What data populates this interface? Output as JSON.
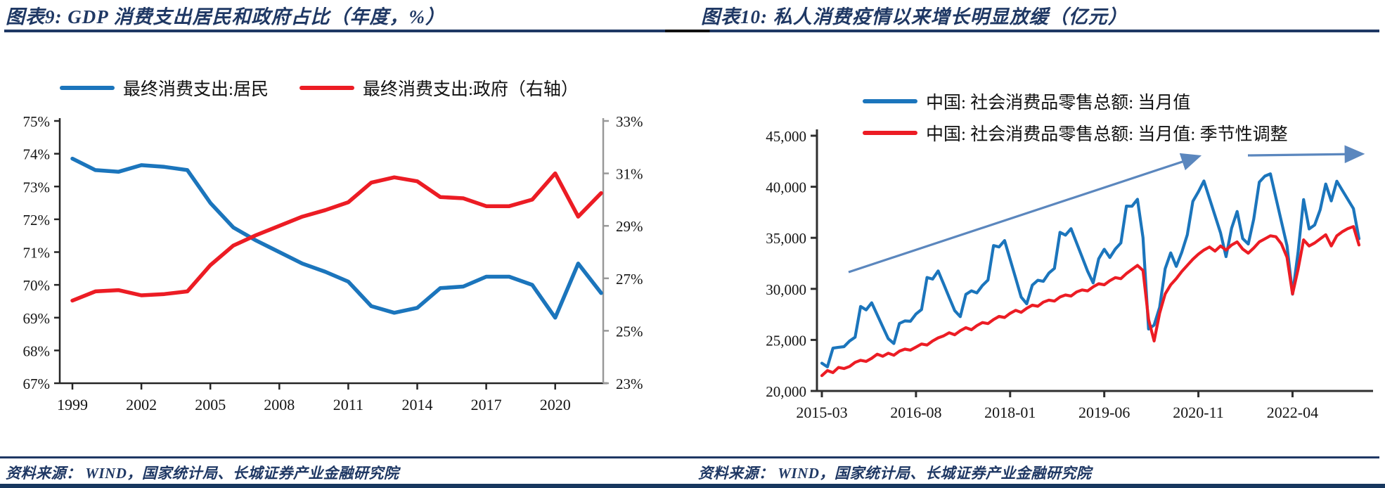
{
  "page": {
    "accent_color": "#1f3864",
    "source_text": "资料来源：  WIND，国家统计局、长城证券产业金融研究院"
  },
  "left_panel": {
    "title": "图表9:  GDP 消费支出居民和政府占比（年度，%）",
    "legend": [
      {
        "label": "最终消费支出:居民",
        "color": "#1b75bc"
      },
      {
        "label": "最终消费支出:政府（右轴）",
        "color": "#ec1c24"
      }
    ],
    "chart_data": {
      "type": "line",
      "title": "GDP消费支出居民和政府占比（年度，%）",
      "categories": [
        1999,
        2000,
        2001,
        2002,
        2003,
        2004,
        2005,
        2006,
        2007,
        2008,
        2009,
        2010,
        2011,
        2012,
        2013,
        2014,
        2015,
        2016,
        2017,
        2018,
        2019,
        2020,
        2021,
        2022
      ],
      "series": [
        {
          "name": "最终消费支出:居民",
          "axis": "left",
          "color": "#1b75bc",
          "values": [
            73.85,
            73.5,
            73.45,
            73.65,
            73.6,
            73.5,
            72.5,
            71.75,
            71.35,
            71.0,
            70.65,
            70.4,
            70.1,
            69.35,
            69.15,
            69.3,
            69.9,
            69.95,
            70.25,
            70.25,
            70.0,
            69.0,
            70.65,
            69.75
          ]
        },
        {
          "name": "最终消费支出:政府（右轴）",
          "axis": "right",
          "color": "#ec1c24",
          "values": [
            26.15,
            26.5,
            26.55,
            26.35,
            26.4,
            26.5,
            27.5,
            28.25,
            28.65,
            29.0,
            29.35,
            29.6,
            29.9,
            30.65,
            30.85,
            30.7,
            30.1,
            30.05,
            29.75,
            29.75,
            30.0,
            31.0,
            29.35,
            30.25
          ]
        }
      ],
      "left_axis": {
        "min": 67,
        "max": 75,
        "step": 1,
        "tick_labels": [
          "67%",
          "68%",
          "69%",
          "70%",
          "71%",
          "72%",
          "73%",
          "74%",
          "75%"
        ]
      },
      "right_axis": {
        "min": 23,
        "max": 33,
        "step": 2,
        "tick_labels": [
          "23%",
          "25%",
          "27%",
          "29%",
          "31%",
          "33%"
        ]
      },
      "x_tick_labels": [
        "1999",
        "2002",
        "2005",
        "2008",
        "2011",
        "2014",
        "2017",
        "2020"
      ],
      "grid": false,
      "legend_position": "top"
    }
  },
  "right_panel": {
    "title": "图表10:  私人消费疫情以来增长明显放缓（亿元）",
    "legend": [
      {
        "label": "中国: 社会消费品零售总额: 当月值",
        "color": "#1b75bc"
      },
      {
        "label": "中国: 社会消费品零售总额: 当月值: 季节性调整",
        "color": "#ec1c24"
      }
    ],
    "chart_data": {
      "type": "line",
      "title": "私人消费疫情以来增长明显放缓（亿元）",
      "x_start": "2015-03",
      "x_frequency": "monthly",
      "x_tick_labels": [
        "2015-03",
        "2016-08",
        "2018-01",
        "2019-06",
        "2020-11",
        "2022-04"
      ],
      "y_axis": {
        "min": 20000,
        "max": 45000,
        "step": 5000,
        "tick_labels": [
          "20,000",
          "25,000",
          "30,000",
          "35,000",
          "40,000",
          "45,000"
        ]
      },
      "series": [
        {
          "name": "中国: 社会消费品零售总额: 当月值",
          "color": "#1b75bc",
          "values": [
            22723,
            22359,
            24195,
            24280,
            24339,
            24893,
            25271,
            28279,
            27938,
            28635,
            27461,
            26288,
            25114,
            24646,
            26611,
            26857,
            26827,
            27540,
            27976,
            31119,
            30959,
            31757,
            30459,
            29161,
            27864,
            27279,
            29459,
            29808,
            29610,
            30330,
            30870,
            34241,
            34108,
            34734,
            32887,
            31040,
            29194,
            28542,
            30359,
            30842,
            30734,
            31542,
            32005,
            35534,
            35260,
            35893,
            34504,
            33115,
            31726,
            30586,
            32956,
            33878,
            33073,
            33896,
            34495,
            38104,
            38094,
            38777,
            35000,
            26065,
            26450,
            28178,
            31973,
            33526,
            32203,
            33571,
            35295,
            38576,
            39514,
            40566,
            38872,
            37178,
            35484,
            33153,
            35945,
            37586,
            34925,
            34395,
            36833,
            40454,
            41043,
            41269,
            38924,
            36579,
            34233,
            29483,
            33547,
            38742,
            35870,
            36258,
            37745,
            40271,
            38615,
            40542,
            39646,
            38751,
            37855,
            34910
          ]
        },
        {
          "name": "中国: 社会消费品零售总额: 当月值: 季节性调整",
          "color": "#ec1c24",
          "values": [
            21500,
            22000,
            21800,
            22300,
            22200,
            22400,
            22800,
            23000,
            22900,
            23200,
            23600,
            23400,
            23700,
            23500,
            23900,
            24100,
            24000,
            24300,
            24600,
            24500,
            24900,
            25200,
            25400,
            25700,
            25500,
            25900,
            26200,
            26000,
            26400,
            26700,
            26600,
            27000,
            27300,
            27200,
            27600,
            27900,
            27700,
            28100,
            28400,
            28300,
            28700,
            28900,
            28800,
            29200,
            29400,
            29300,
            29700,
            29900,
            29800,
            30200,
            30500,
            30400,
            30800,
            31100,
            31000,
            31500,
            31900,
            32300,
            31800,
            27000,
            24900,
            27600,
            29500,
            30400,
            31000,
            31700,
            32300,
            32900,
            33400,
            33800,
            34100,
            33700,
            34200,
            33800,
            34300,
            34600,
            33900,
            33500,
            34000,
            34600,
            34900,
            35200,
            35100,
            34400,
            33100,
            29500,
            31900,
            34800,
            34200,
            34500,
            34900,
            35300,
            34200,
            35200,
            35600,
            35900,
            36100,
            34300
          ]
        }
      ],
      "annotations": [
        {
          "type": "trend-arrow",
          "direction": "up",
          "color": "#5b87be"
        },
        {
          "type": "trend-arrow",
          "direction": "flat",
          "color": "#5b87be"
        }
      ],
      "grid": false,
      "legend_position": "top"
    }
  }
}
